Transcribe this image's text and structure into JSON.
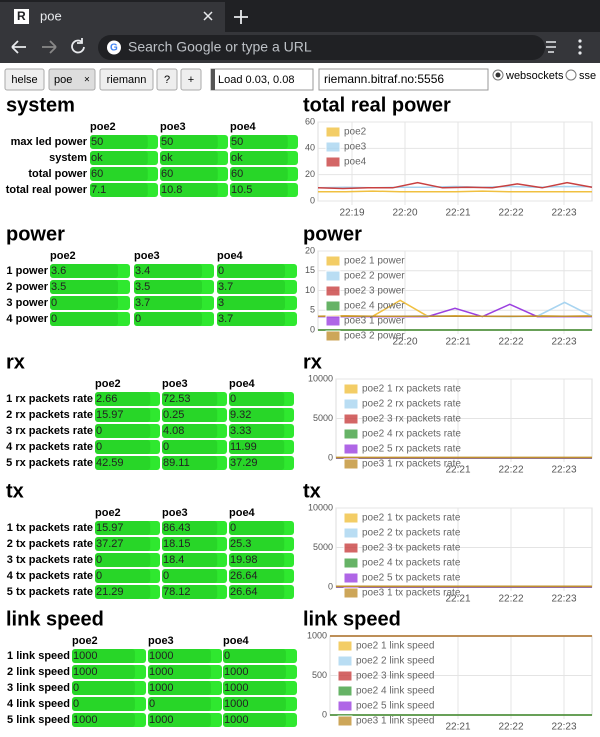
{
  "browser": {
    "tab_title": "poe",
    "address_placeholder": "Search Google or type a URL"
  },
  "toolbar": {
    "tabs": [
      "helse",
      "poe",
      "riemann",
      "?",
      "+"
    ],
    "load": "Load 0.03, 0.08",
    "host": "riemann.bitraf.no:5556",
    "transports": [
      "websockets",
      "sse"
    ]
  },
  "sections": [
    {
      "title": "system",
      "table": {
        "columns": [
          "poe2",
          "poe3",
          "poe4"
        ],
        "rows": [
          {
            "label": "max led power",
            "cells": [
              "50",
              "50",
              "50"
            ]
          },
          {
            "label": "system",
            "cells": [
              "ok",
              "ok",
              "ok"
            ]
          },
          {
            "label": "total power",
            "cells": [
              "60",
              "60",
              "60"
            ]
          },
          {
            "label": "total real power",
            "cells": [
              "7.1",
              "10.8",
              "10.5"
            ]
          }
        ]
      },
      "chart": {
        "type": "line",
        "title": "total real power",
        "ylim": [
          0,
          60
        ],
        "yticks": [
          0,
          20,
          40,
          60
        ],
        "xticks": [
          "22:19",
          "22:20",
          "22:21",
          "22:22",
          "22:23"
        ],
        "series": [
          {
            "name": "poe2",
            "color": "#f0c040",
            "values": [
              7,
              7,
              7.5,
              7,
              7,
              7,
              7.5,
              7,
              7,
              7,
              7.1
            ]
          },
          {
            "name": "poe3",
            "color": "#a8d4f0",
            "values": [
              10,
              10.5,
              10,
              10.5,
              10.5,
              11,
              10.5,
              11,
              10.5,
              11,
              10.8
            ]
          },
          {
            "name": "poe4",
            "color": "#c84040",
            "values": [
              10,
              9.5,
              10,
              10,
              14,
              10,
              10.5,
              10,
              13,
              10,
              14,
              10.5
            ]
          }
        ]
      }
    },
    {
      "title": "power",
      "table": {
        "columns": [
          "poe2",
          "poe3",
          "poe4"
        ],
        "rows": [
          {
            "label": "1 power",
            "cells": [
              "3.6",
              "3.4",
              "0"
            ]
          },
          {
            "label": "2 power",
            "cells": [
              "3.5",
              "3.5",
              "3.7"
            ]
          },
          {
            "label": "3 power",
            "cells": [
              "0",
              "3.7",
              "3"
            ]
          },
          {
            "label": "4 power",
            "cells": [
              "0",
              "0",
              "3.7"
            ]
          }
        ]
      },
      "chart": {
        "type": "line",
        "title": "power",
        "ylim": [
          0,
          20
        ],
        "yticks": [
          0,
          5,
          10,
          15,
          20
        ],
        "xticks": [
          "22:20",
          "22:21",
          "22:22",
          "22:23"
        ],
        "series": [
          {
            "name": "poe2 1 power",
            "color": "#f0c040",
            "values": [
              3.5,
              3.6,
              3.5,
              7.5,
              3.5,
              3.6,
              3.5,
              3.4,
              3.6,
              3.5,
              3.6
            ]
          },
          {
            "name": "poe2 2 power",
            "color": "#a8d4f0",
            "values": [
              3.5,
              3.4,
              3.5,
              3.5,
              3.6,
              3.5,
              3.5,
              3.4,
              3.5,
              7,
              3.5
            ]
          },
          {
            "name": "poe2 3 power",
            "color": "#c84040",
            "values": [
              0,
              0,
              0,
              0,
              0,
              0,
              0,
              0,
              0,
              0,
              0
            ]
          },
          {
            "name": "poe2 4 power",
            "color": "#40a040",
            "values": [
              0,
              0,
              0,
              0,
              0,
              0,
              0,
              0,
              0,
              0,
              0
            ]
          },
          {
            "name": "poe3 1 power",
            "color": "#9b40e0",
            "values": [
              3.4,
              3.4,
              3.4,
              3.4,
              3.4,
              5.5,
              3.4,
              6.5,
              3.4,
              3.4,
              3.4
            ]
          },
          {
            "name": "poe3 2 power",
            "color": "#c09030",
            "values": [
              3.5,
              3.5,
              3.5,
              3.5,
              3.5,
              3.5,
              3.5,
              3.5,
              3.5,
              3.5,
              3.5
            ]
          }
        ]
      }
    },
    {
      "title": "rx",
      "table": {
        "columns": [
          "poe2",
          "poe3",
          "poe4"
        ],
        "rows": [
          {
            "label": "1 rx packets rate",
            "cells": [
              "2.66",
              "72.53",
              "0"
            ]
          },
          {
            "label": "2 rx packets rate",
            "cells": [
              "15.97",
              "0.25",
              "9.32"
            ]
          },
          {
            "label": "3 rx packets rate",
            "cells": [
              "0",
              "4.08",
              "3.33"
            ]
          },
          {
            "label": "4 rx packets rate",
            "cells": [
              "0",
              "0",
              "11.99"
            ]
          },
          {
            "label": "5 rx packets rate",
            "cells": [
              "42.59",
              "89.11",
              "37.29"
            ]
          }
        ]
      },
      "chart": {
        "type": "line",
        "title": "rx",
        "ylim": [
          0,
          10000
        ],
        "yticks": [
          0,
          5000,
          10000
        ],
        "xticks": [
          "22:21",
          "22:22",
          "22:23"
        ],
        "series": [
          {
            "name": "poe2 1 rx packets rate",
            "color": "#f0c040",
            "values": [
              3,
              3,
              3,
              3,
              3,
              3,
              3,
              3,
              3
            ]
          },
          {
            "name": "poe2 2 rx packets rate",
            "color": "#a8d4f0",
            "values": [
              16,
              16,
              16,
              16,
              16,
              16,
              16,
              16,
              16
            ]
          },
          {
            "name": "poe2 3 rx packets rate",
            "color": "#c84040",
            "values": [
              0,
              0,
              0,
              0,
              0,
              0,
              0,
              0,
              0
            ]
          },
          {
            "name": "poe2 4 rx packets rate",
            "color": "#40a040",
            "values": [
              0,
              0,
              0,
              0,
              0,
              0,
              0,
              0,
              0
            ]
          },
          {
            "name": "poe2 5 rx packets rate",
            "color": "#9b40e0",
            "values": [
              43,
              43,
              43,
              43,
              43,
              43,
              43,
              43,
              43
            ]
          },
          {
            "name": "poe3 1 rx packets rate",
            "color": "#c09030",
            "values": [
              73,
              73,
              73,
              73,
              73,
              73,
              73,
              73,
              73
            ]
          }
        ]
      }
    },
    {
      "title": "tx",
      "table": {
        "columns": [
          "poe2",
          "poe3",
          "poe4"
        ],
        "rows": [
          {
            "label": "1 tx packets rate",
            "cells": [
              "15.97",
              "86.43",
              "0"
            ]
          },
          {
            "label": "2 tx packets rate",
            "cells": [
              "37.27",
              "18.15",
              "25.3"
            ]
          },
          {
            "label": "3 tx packets rate",
            "cells": [
              "0",
              "18.4",
              "19.98"
            ]
          },
          {
            "label": "4 tx packets rate",
            "cells": [
              "0",
              "0",
              "26.64"
            ]
          },
          {
            "label": "5 tx packets rate",
            "cells": [
              "21.29",
              "78.12",
              "26.64"
            ]
          }
        ]
      },
      "chart": {
        "type": "line",
        "title": "tx",
        "ylim": [
          0,
          10000
        ],
        "yticks": [
          0,
          5000,
          10000
        ],
        "xticks": [
          "22:21",
          "22:22",
          "22:23"
        ],
        "series": [
          {
            "name": "poe2 1 tx packets rate",
            "color": "#f0c040",
            "values": [
              16,
              16,
              16,
              16,
              16,
              16,
              16,
              16,
              16
            ]
          },
          {
            "name": "poe2 2 tx packets rate",
            "color": "#a8d4f0",
            "values": [
              37,
              37,
              37,
              37,
              37,
              37,
              37,
              37,
              37
            ]
          },
          {
            "name": "poe2 3 tx packets rate",
            "color": "#c84040",
            "values": [
              0,
              0,
              0,
              0,
              0,
              0,
              0,
              0,
              0
            ]
          },
          {
            "name": "poe2 4 tx packets rate",
            "color": "#40a040",
            "values": [
              0,
              0,
              0,
              0,
              0,
              0,
              0,
              0,
              0
            ]
          },
          {
            "name": "poe2 5 tx packets rate",
            "color": "#9b40e0",
            "values": [
              21,
              21,
              21,
              21,
              21,
              21,
              21,
              21,
              21
            ]
          },
          {
            "name": "poe3 1 tx packets rate",
            "color": "#c09030",
            "values": [
              86,
              86,
              86,
              86,
              86,
              86,
              86,
              86,
              86
            ]
          }
        ]
      }
    },
    {
      "title": "link speed",
      "table": {
        "columns": [
          "poe2",
          "poe3",
          "poe4"
        ],
        "rows": [
          {
            "label": "1 link speed",
            "cells": [
              "1000",
              "1000",
              "0"
            ]
          },
          {
            "label": "2 link speed",
            "cells": [
              "1000",
              "1000",
              "1000"
            ]
          },
          {
            "label": "3 link speed",
            "cells": [
              "0",
              "1000",
              "1000"
            ]
          },
          {
            "label": "4 link speed",
            "cells": [
              "0",
              "0",
              "1000"
            ]
          },
          {
            "label": "5 link speed",
            "cells": [
              "1000",
              "1000",
              "1000"
            ]
          }
        ]
      },
      "chart": {
        "type": "line",
        "title": "link speed",
        "ylim": [
          0,
          1000
        ],
        "yticks": [
          0,
          500,
          1000
        ],
        "xticks": [
          "22:21",
          "22:22",
          "22:23"
        ],
        "series": [
          {
            "name": "poe2 1 link speed",
            "color": "#f0c040",
            "values": [
              1000,
              1000,
              1000,
              1000,
              1000,
              1000,
              1000,
              1000,
              1000
            ]
          },
          {
            "name": "poe2 2 link speed",
            "color": "#a8d4f0",
            "values": [
              1000,
              1000,
              1000,
              1000,
              1000,
              1000,
              1000,
              1000,
              1000
            ]
          },
          {
            "name": "poe2 3 link speed",
            "color": "#c84040",
            "values": [
              0,
              0,
              0,
              0,
              0,
              0,
              0,
              0,
              0
            ]
          },
          {
            "name": "poe2 4 link speed",
            "color": "#40a040",
            "values": [
              0,
              0,
              0,
              0,
              0,
              0,
              0,
              0,
              0
            ]
          },
          {
            "name": "poe2 5 link speed",
            "color": "#9b40e0",
            "values": [
              1000,
              1000,
              1000,
              1000,
              1000,
              1000,
              1000,
              1000,
              1000
            ]
          },
          {
            "name": "poe3 1 link speed",
            "color": "#c09030",
            "values": [
              1000,
              1000,
              1000,
              1000,
              1000,
              1000,
              1000,
              1000,
              1000
            ]
          }
        ]
      }
    }
  ]
}
